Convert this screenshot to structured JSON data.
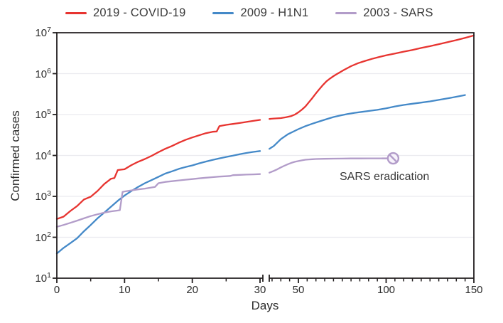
{
  "figure": {
    "ylabel": "Confirmed cases",
    "xlabel": "Days"
  },
  "chart_data": {
    "type": "line",
    "title": "",
    "xlabel": "Days",
    "ylabel": "Confirmed cases",
    "yscale": "log",
    "ylim": [
      10,
      10000000
    ],
    "y_tick_exponents": [
      1,
      2,
      3,
      4,
      5,
      6,
      7
    ],
    "grid": "horizontal gridlines at each decade, light gray",
    "legend_position": "top",
    "x_axis_break": {
      "between": [
        30,
        33
      ],
      "note": "broken x-axis: 0-30 expanded, 33-150 compressed"
    },
    "x_ticks_left_major": [
      0,
      10,
      20,
      30
    ],
    "x_ticks_left_minor": [
      5,
      15,
      25
    ],
    "x_ticks_right_major": [
      50,
      100,
      150
    ],
    "x_ticks_right_minor": [
      35,
      40,
      45,
      55,
      60,
      65,
      70,
      75,
      80,
      85,
      90,
      95,
      105,
      110,
      115,
      120,
      125,
      130,
      135,
      140,
      145
    ],
    "colors": {
      "covid": "#e73430",
      "h1n1": "#4489c8",
      "sars": "#b29cc9",
      "grid": "#ebebef",
      "axis": "#231f20"
    },
    "series": [
      {
        "name": "2019 - COVID-19",
        "color": "#e73430",
        "segments": [
          [
            [
              0,
              280
            ],
            [
              1,
              320
            ],
            [
              2,
              440
            ],
            [
              3,
              580
            ],
            [
              4,
              840
            ],
            [
              5,
              980
            ],
            [
              6,
              1350
            ],
            [
              7,
              2000
            ],
            [
              8,
              2700
            ],
            [
              8.5,
              2800
            ],
            [
              9,
              4400
            ],
            [
              10,
              4600
            ],
            [
              11,
              5800
            ],
            [
              12,
              7000
            ],
            [
              13,
              8200
            ],
            [
              14,
              9800
            ],
            [
              15,
              12000
            ],
            [
              16,
              14500
            ],
            [
              17,
              17000
            ],
            [
              18,
              20500
            ],
            [
              19,
              24000
            ],
            [
              20,
              27500
            ],
            [
              21,
              31000
            ],
            [
              22,
              35000
            ],
            [
              23,
              38000
            ],
            [
              23.6,
              38500
            ],
            [
              24,
              52000
            ],
            [
              25,
              56000
            ],
            [
              26,
              59000
            ],
            [
              27,
              62000
            ],
            [
              28,
              66000
            ],
            [
              29,
              70000
            ],
            [
              30,
              74000
            ]
          ],
          [
            [
              33.5,
              78000
            ],
            [
              36,
              80000
            ],
            [
              40,
              82000
            ],
            [
              43,
              86000
            ],
            [
              46,
              92000
            ],
            [
              48,
              100000
            ],
            [
              50,
              113000
            ],
            [
              52,
              132000
            ],
            [
              54,
              158000
            ],
            [
              56,
              200000
            ],
            [
              58,
              255000
            ],
            [
              60,
              330000
            ],
            [
              62,
              420000
            ],
            [
              64,
              530000
            ],
            [
              66,
              650000
            ],
            [
              68,
              760000
            ],
            [
              70,
              870000
            ],
            [
              72,
              980000
            ],
            [
              74,
              1100000
            ],
            [
              76,
              1230000
            ],
            [
              78,
              1370000
            ],
            [
              80,
              1520000
            ],
            [
              84,
              1800000
            ],
            [
              88,
              2050000
            ],
            [
              92,
              2300000
            ],
            [
              96,
              2550000
            ],
            [
              100,
              2800000
            ],
            [
              105,
              3100000
            ],
            [
              110,
              3450000
            ],
            [
              115,
              3800000
            ],
            [
              120,
              4250000
            ],
            [
              125,
              4700000
            ],
            [
              130,
              5250000
            ],
            [
              135,
              5900000
            ],
            [
              140,
              6600000
            ],
            [
              145,
              7500000
            ],
            [
              150,
              8600000
            ]
          ]
        ]
      },
      {
        "name": "2009 - H1N1",
        "color": "#4489c8",
        "segments": [
          [
            [
              0,
              40
            ],
            [
              1,
              55
            ],
            [
              2,
              72
            ],
            [
              3,
              95
            ],
            [
              4,
              140
            ],
            [
              5,
              200
            ],
            [
              6,
              290
            ],
            [
              7,
              400
            ],
            [
              8,
              560
            ],
            [
              9,
              780
            ],
            [
              10,
              1050
            ],
            [
              11,
              1350
            ],
            [
              12,
              1700
            ],
            [
              13,
              2100
            ],
            [
              14,
              2500
            ],
            [
              15,
              3000
            ],
            [
              16,
              3600
            ],
            [
              17,
              4100
            ],
            [
              18,
              4700
            ],
            [
              19,
              5200
            ],
            [
              20,
              5700
            ],
            [
              21,
              6400
            ],
            [
              22,
              7100
            ],
            [
              23,
              7800
            ],
            [
              24,
              8500
            ],
            [
              25,
              9200
            ],
            [
              26,
              9900
            ],
            [
              27,
              10700
            ],
            [
              28,
              11500
            ],
            [
              29,
              12200
            ],
            [
              30,
              12800
            ]
          ],
          [
            [
              33.5,
              14500
            ],
            [
              36,
              17000
            ],
            [
              40,
              25000
            ],
            [
              44,
              33000
            ],
            [
              48,
              40000
            ],
            [
              50,
              44000
            ],
            [
              54,
              52000
            ],
            [
              58,
              60000
            ],
            [
              62,
              68000
            ],
            [
              66,
              77000
            ],
            [
              70,
              87000
            ],
            [
              74,
              95000
            ],
            [
              78,
              103000
            ],
            [
              82,
              110000
            ],
            [
              86,
              116000
            ],
            [
              90,
              122000
            ],
            [
              95,
              130000
            ],
            [
              100,
              142000
            ],
            [
              105,
              158000
            ],
            [
              110,
              172000
            ],
            [
              115,
              184000
            ],
            [
              120,
              196000
            ],
            [
              125,
              210000
            ],
            [
              130,
              228000
            ],
            [
              135,
              248000
            ],
            [
              140,
              272000
            ],
            [
              145,
              300000
            ]
          ]
        ]
      },
      {
        "name": "2003 - SARS",
        "color": "#b29cc9",
        "segments": [
          [
            [
              0,
              180
            ],
            [
              1,
              200
            ],
            [
              2,
              225
            ],
            [
              3,
              255
            ],
            [
              4,
              290
            ],
            [
              5,
              330
            ],
            [
              6,
              365
            ],
            [
              7,
              400
            ],
            [
              8,
              430
            ],
            [
              9,
              450
            ],
            [
              9.3,
              460
            ],
            [
              9.7,
              1280
            ],
            [
              10,
              1320
            ],
            [
              11,
              1400
            ],
            [
              12,
              1480
            ],
            [
              13,
              1550
            ],
            [
              14,
              1650
            ],
            [
              14.5,
              1700
            ],
            [
              15,
              2100
            ],
            [
              16,
              2250
            ],
            [
              17,
              2350
            ],
            [
              18,
              2450
            ],
            [
              19,
              2550
            ],
            [
              20,
              2650
            ],
            [
              21,
              2750
            ],
            [
              22,
              2850
            ],
            [
              23,
              2950
            ],
            [
              24,
              3050
            ],
            [
              25,
              3100
            ],
            [
              25.6,
              3150
            ],
            [
              26,
              3300
            ],
            [
              27,
              3350
            ],
            [
              28,
              3400
            ],
            [
              29,
              3450
            ],
            [
              30,
              3500
            ]
          ],
          [
            [
              33.5,
              3800
            ],
            [
              36,
              4200
            ],
            [
              38,
              4600
            ],
            [
              40,
              5100
            ],
            [
              42,
              5600
            ],
            [
              44,
              6100
            ],
            [
              46,
              6600
            ],
            [
              48,
              7000
            ],
            [
              50,
              7300
            ],
            [
              52,
              7600
            ],
            [
              54,
              7850
            ],
            [
              56,
              8000
            ],
            [
              58,
              8100
            ],
            [
              60,
              8200
            ],
            [
              65,
              8300
            ],
            [
              70,
              8350
            ],
            [
              75,
              8400
            ],
            [
              80,
              8450
            ],
            [
              85,
              8450
            ],
            [
              90,
              8500
            ],
            [
              95,
              8500
            ],
            [
              100,
              8500
            ],
            [
              104,
              8500
            ]
          ]
        ]
      }
    ],
    "annotation": {
      "label": "SARS eradication",
      "day": 104,
      "value": 8500,
      "marker": "circle-with-slash",
      "marker_color": "#b29cc9"
    }
  }
}
